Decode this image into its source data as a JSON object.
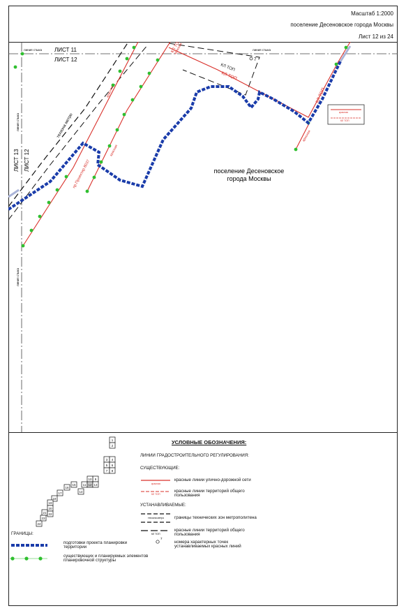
{
  "header": {
    "scale": "Масштаб 1:2000",
    "settlement": "поселение Десеновское города Москвы",
    "sheet": "Лист 12 из 24"
  },
  "map": {
    "sheet_above": "ЛИСТ 11",
    "sheet_current": "ЛИСТ 12",
    "sheet_left_1": "ЛИСТ 13",
    "sheet_left_2": "ЛИСТ 12",
    "joint_label": "линия стыка",
    "metro_label": "техзона метро",
    "red_line_label": "красная",
    "kl_top_label": "КЛ ТОП",
    "street_label": "пр.Проектир.8037",
    "point_label": "7",
    "area_label_line1": "поселение Десеновское",
    "area_label_line2": "города Москвы",
    "inset_labels": [
      "красная",
      "КЛ ТОП"
    ]
  },
  "legend": {
    "title": "УСЛОВНЫЕ ОБОЗНАЧЕНИЯ:",
    "section_lines": "ЛИНИИ ГРАДОСТРОИТЕЛЬНОГО РЕГУЛИРОВАНИЯ:",
    "existing": "СУЩЕСТВУЮЩИЕ:",
    "red_street": "красные линии улично-дорожной сети",
    "red_street_tag": "красная",
    "red_public_1": "красные линии территорий общего",
    "red_public_2": "пользования",
    "red_public_tag": "КЛ ТОП",
    "established": "УСТАНАВЛИВАЕМЫЕ:",
    "metro_zone": "границы технических зон метрополитена",
    "metro_zone_tag": "техзона метро",
    "black_public_1": "красные линии территорий общего",
    "black_public_2": "пользования",
    "black_public_tag": "КЛ ТОП",
    "points_1": "номера характерных точек",
    "points_2": "устанавливаемых красных линий",
    "point_sample": "7",
    "borders": "ГРАНИЦЫ:",
    "plan_1": "подготовки проекта планировки",
    "plan_2": "территории",
    "elem_1": "существующих и планируемых элементов",
    "elem_2": "планировочной структуры",
    "sheet_index": [
      "1",
      "2",
      "3",
      "4",
      "5",
      "6",
      "7",
      "8",
      "9",
      "10",
      "11",
      "12",
      "13",
      "14",
      "15",
      "16",
      "17",
      "18",
      "19",
      "20",
      "21",
      "22",
      "23",
      "24"
    ]
  }
}
